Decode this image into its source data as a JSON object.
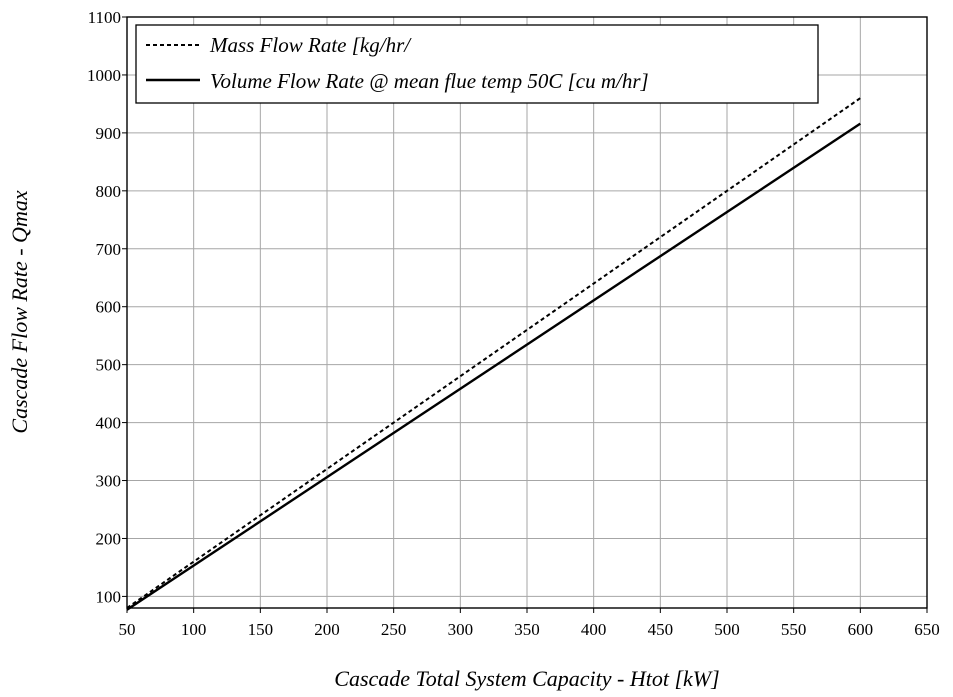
{
  "chart_data": {
    "type": "line",
    "title": "",
    "xlabel": "Cascade Total System Capacity - Htot [kW]",
    "ylabel": "Cascade  Flow Rate - Qmax",
    "xlim": [
      50,
      650
    ],
    "ylim": [
      80,
      1100
    ],
    "x_ticks": [
      50,
      100,
      150,
      200,
      250,
      300,
      350,
      400,
      450,
      500,
      550,
      600,
      650
    ],
    "y_ticks": [
      100,
      200,
      300,
      400,
      500,
      600,
      700,
      800,
      900,
      1000,
      1100
    ],
    "y_tick_labels": [
      "100",
      "200",
      "300",
      "400",
      "500",
      "600",
      "700",
      "800",
      "900",
      "1000",
      "1100"
    ],
    "x_tick_labels": [
      "50",
      "100",
      "150",
      "200",
      "250",
      "300",
      "350",
      "400",
      "450",
      "500",
      "550",
      "600",
      "650"
    ],
    "grid": true,
    "legend_position": "top-left",
    "series": [
      {
        "name": "Mass Flow Rate [kg/hr/",
        "style": "dashed",
        "color": "#000000",
        "x": [
          50,
          600
        ],
        "y": [
          80,
          960
        ]
      },
      {
        "name": "Volume Flow Rate @ mean flue temp 50C [cu m/hr]",
        "style": "solid",
        "color": "#000000",
        "x": [
          50,
          600
        ],
        "y": [
          77,
          916
        ]
      }
    ]
  }
}
